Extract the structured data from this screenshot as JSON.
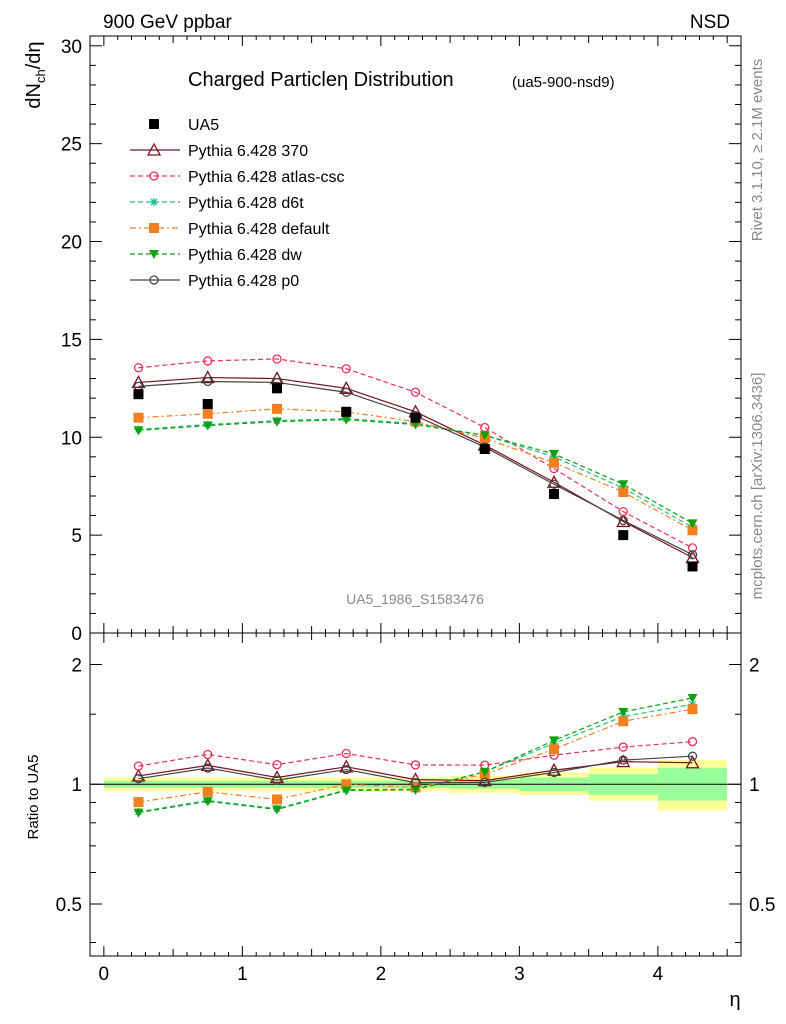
{
  "header": {
    "left": "900 GeV ppbar",
    "right": "NSD"
  },
  "side_text": {
    "rivet": "Rivet 3.1.10, ≥ 2.1M events",
    "mcplots": "mcplots.cern.ch [arXiv:1306.3436]"
  },
  "chart_data": {
    "type": "scatter",
    "title": "Charged Particleη Distribution",
    "subtitle": "(ua5-900-nsd9)",
    "watermark": "UA5_1986_S1583476",
    "xlabel": "η",
    "ylabel": "dN_ch/dη",
    "ratio_ylabel": "Ratio to UA5",
    "xlim": [
      -0.1,
      4.6
    ],
    "ylim": [
      0,
      30.5
    ],
    "ratio_ylim": [
      0.37,
      2.4
    ],
    "ratio_log_scale": true,
    "x_ticks": [
      "0",
      "1",
      "2",
      "3",
      "4"
    ],
    "y_ticks": [
      "0",
      "5",
      "10",
      "15",
      "20",
      "25",
      "30"
    ],
    "ratio_ticks": [
      "0.5",
      "1",
      "2"
    ],
    "x": [
      0.25,
      0.75,
      1.25,
      1.75,
      2.25,
      2.75,
      3.25,
      3.75,
      4.25
    ],
    "data": {
      "name": "UA5",
      "color": "#000000",
      "values": [
        12.2,
        11.7,
        12.5,
        11.3,
        11.0,
        9.4,
        7.1,
        5.0,
        3.4
      ]
    },
    "bands": [
      {
        "x0": 0.0,
        "x1": 0.5,
        "yellow": [
          0.96,
          1.04
        ],
        "green": [
          0.98,
          1.02
        ]
      },
      {
        "x0": 0.5,
        "x1": 1.0,
        "yellow": [
          0.96,
          1.04
        ],
        "green": [
          0.98,
          1.02
        ]
      },
      {
        "x0": 1.0,
        "x1": 1.5,
        "yellow": [
          0.96,
          1.04
        ],
        "green": [
          0.98,
          1.02
        ]
      },
      {
        "x0": 1.5,
        "x1": 2.0,
        "yellow": [
          0.96,
          1.04
        ],
        "green": [
          0.98,
          1.02
        ]
      },
      {
        "x0": 2.0,
        "x1": 2.5,
        "yellow": [
          0.96,
          1.04
        ],
        "green": [
          0.98,
          1.02
        ]
      },
      {
        "x0": 2.5,
        "x1": 3.0,
        "yellow": [
          0.95,
          1.05
        ],
        "green": [
          0.975,
          1.025
        ]
      },
      {
        "x0": 3.0,
        "x1": 3.5,
        "yellow": [
          0.94,
          1.07
        ],
        "green": [
          0.96,
          1.04
        ]
      },
      {
        "x0": 3.5,
        "x1": 4.0,
        "yellow": [
          0.91,
          1.1
        ],
        "green": [
          0.94,
          1.06
        ]
      },
      {
        "x0": 4.0,
        "x1": 4.5,
        "yellow": [
          0.86,
          1.15
        ],
        "green": [
          0.91,
          1.1
        ]
      }
    ],
    "series": [
      {
        "name": "Pythia 6.428 370",
        "color": "#7a1020",
        "dash": "",
        "marker": "triangle-open",
        "values": [
          12.8,
          13.05,
          13.0,
          12.5,
          11.3,
          9.6,
          7.7,
          5.7,
          3.85
        ]
      },
      {
        "name": "Pythia 6.428 atlas-csc",
        "color": "#e8305a",
        "dash": "5,3",
        "marker": "circle-open",
        "values": [
          13.55,
          13.9,
          14.0,
          13.5,
          12.3,
          10.5,
          8.4,
          6.2,
          4.35
        ]
      },
      {
        "name": "Pythia 6.428 d6t",
        "color": "#20c090",
        "dash": "5,3",
        "marker": "star",
        "values": [
          10.4,
          10.65,
          10.85,
          10.95,
          10.7,
          10.1,
          9.0,
          7.4,
          5.4
        ]
      },
      {
        "name": "Pythia 6.428 default",
        "color": "#f08020",
        "dash": "6,3,2,3",
        "marker": "square",
        "values": [
          11.0,
          11.2,
          11.45,
          11.3,
          10.8,
          9.95,
          8.7,
          7.2,
          5.25
        ]
      },
      {
        "name": "Pythia 6.428 dw",
        "color": "#10a010",
        "dash": "5,3",
        "marker": "triangle-down",
        "values": [
          10.35,
          10.6,
          10.8,
          10.9,
          10.65,
          10.1,
          9.15,
          7.6,
          5.6
        ]
      },
      {
        "name": "Pythia 6.428 p0",
        "color": "#444444",
        "dash": "",
        "marker": "circle-open",
        "values": [
          12.6,
          12.85,
          12.8,
          12.3,
          11.1,
          9.5,
          7.6,
          5.75,
          4.0
        ]
      }
    ]
  }
}
